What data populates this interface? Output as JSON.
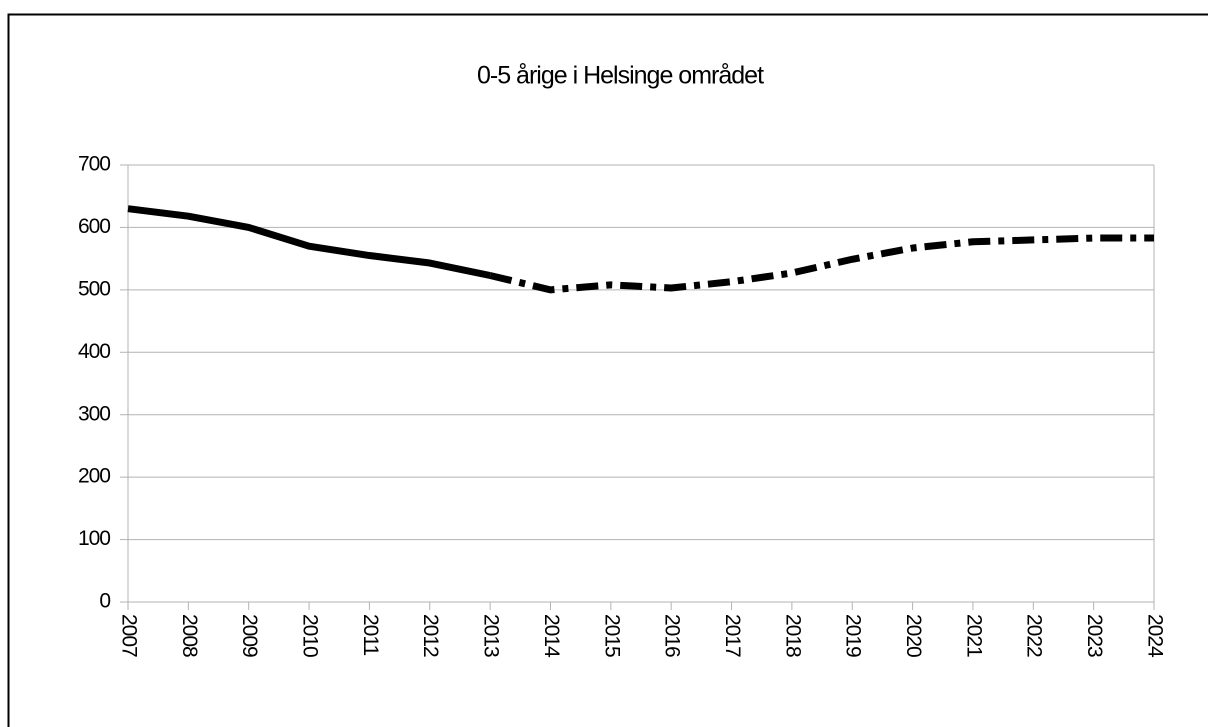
{
  "chart_data": {
    "type": "line",
    "title": "0-5 årige i Helsinge området",
    "categories": [
      "2007",
      "2008",
      "2009",
      "2010",
      "2011",
      "2012",
      "2013",
      "2014",
      "2015",
      "2016",
      "2017",
      "2018",
      "2019",
      "2020",
      "2021",
      "2022",
      "2023",
      "2024"
    ],
    "series": [
      {
        "color": "#000000",
        "line_style": "solid",
        "values": [
          630,
          618,
          600,
          570,
          555,
          543,
          523,
          null,
          null,
          null,
          null,
          null,
          null,
          null,
          null,
          null,
          null,
          null
        ]
      },
      {
        "color": "#000000",
        "line_style": "dashdot",
        "values": [
          null,
          null,
          null,
          null,
          null,
          null,
          523,
          500,
          508,
          503,
          513,
          527,
          549,
          567,
          577,
          580,
          583,
          583
        ]
      }
    ],
    "ylim": [
      0,
      700
    ],
    "yticks": [
      0,
      100,
      200,
      300,
      400,
      500,
      600,
      700
    ],
    "grid": true
  }
}
